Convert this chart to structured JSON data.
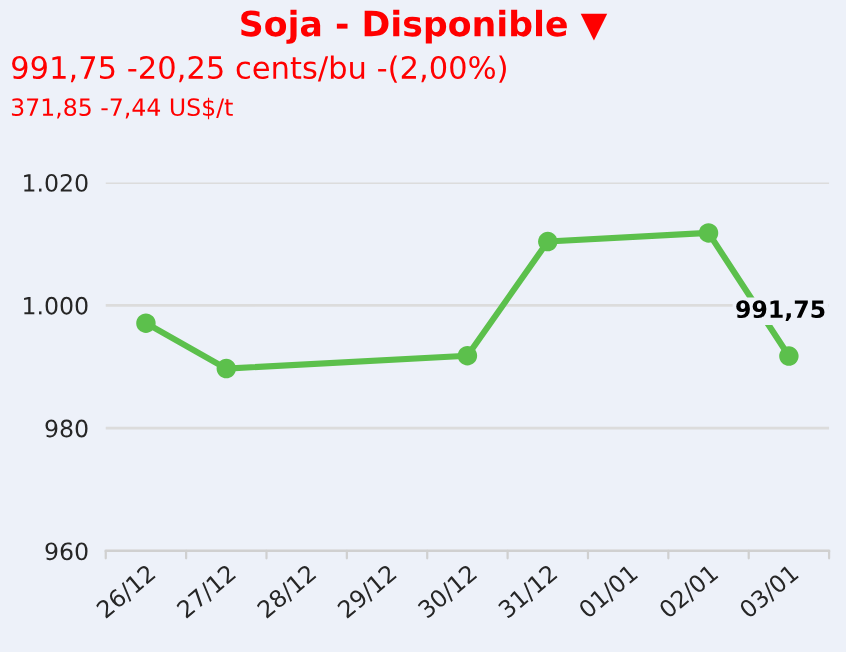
{
  "chart_data": {
    "type": "line",
    "title": "Soja - Disponible ▼",
    "subtitle": "991,75 -20,25 cents/bu -(2,00%)",
    "annotations": [
      "371,85 -7,44 US$/t"
    ],
    "categories": [
      "26/12",
      "27/12",
      "28/12",
      "29/12",
      "30/12",
      "31/12",
      "01/01",
      "02/01",
      "03/01"
    ],
    "series": [
      {
        "color": "#5cc04c",
        "values": [
          997.1,
          989.7,
          null,
          null,
          991.8,
          1010.4,
          null,
          1011.8,
          991.75
        ],
        "value_labels": [
          null,
          null,
          null,
          null,
          null,
          null,
          null,
          null,
          "991,75"
        ]
      }
    ],
    "ylim": [
      960,
      1020
    ],
    "yticks": [
      960,
      980,
      {
        "value": 1000,
        "label": "1.000"
      },
      {
        "value": 1020,
        "label": "1.020"
      }
    ],
    "grid": "y",
    "marker": "circle",
    "line_style": "solid"
  }
}
